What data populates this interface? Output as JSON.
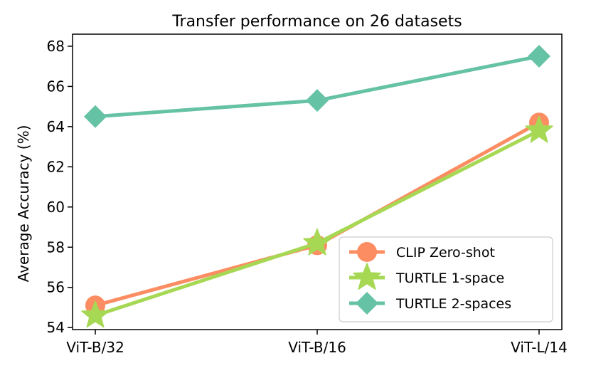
{
  "chart_data": {
    "type": "line",
    "title": "Transfer performance on 26 datasets",
    "xlabel": "",
    "ylabel": "Average Accuracy (%)",
    "categories": [
      "ViT-B/32",
      "ViT-B/16",
      "ViT-L/14"
    ],
    "ylim": [
      53.9,
      68.6
    ],
    "yticks": [
      54,
      56,
      58,
      60,
      62,
      64,
      66,
      68
    ],
    "grid": false,
    "legend_position": "lower-right",
    "series": [
      {
        "name": "CLIP Zero-shot",
        "values": [
          55.1,
          58.1,
          64.2
        ],
        "color": "#fc8d62",
        "marker": "circle"
      },
      {
        "name": "TURTLE 1-space",
        "values": [
          54.6,
          58.2,
          63.8
        ],
        "color": "#a6d854",
        "marker": "star"
      },
      {
        "name": "TURTLE 2-spaces",
        "values": [
          64.5,
          65.3,
          67.5
        ],
        "color": "#66c2a5",
        "marker": "diamond"
      }
    ]
  }
}
